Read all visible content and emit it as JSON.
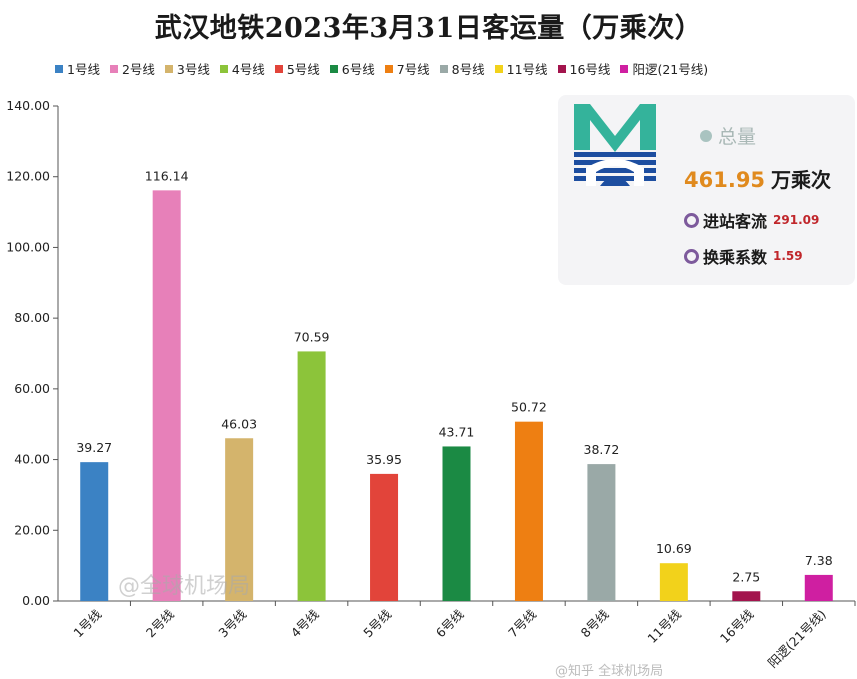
{
  "chart_data": {
    "type": "bar",
    "title": "武汉地铁2023年3月31日客运量（万乘次）",
    "categories": [
      "1号线",
      "2号线",
      "3号线",
      "4号线",
      "5号线",
      "6号线",
      "7号线",
      "8号线",
      "11号线",
      "16号线",
      "阳逻(21号线)"
    ],
    "legend_labels": [
      "1号线",
      "2号线",
      "3号线",
      "4号线",
      "5号线",
      "6号线",
      "7号线",
      "8号线",
      "11号线",
      "16号线",
      "阳逻(21号线)"
    ],
    "values": [
      39.27,
      116.14,
      46.03,
      70.59,
      35.95,
      43.71,
      50.72,
      38.72,
      10.69,
      2.75,
      7.38
    ],
    "value_labels": [
      "39.27",
      "116.14",
      "46.03",
      "70.59",
      "35.95",
      "43.71",
      "50.72",
      "38.72",
      "10.69",
      "2.75",
      "7.38"
    ],
    "colors": [
      "#3b82c4",
      "#e780b9",
      "#d4b46c",
      "#8cc43a",
      "#e2443a",
      "#1b8a44",
      "#ee7f12",
      "#9aa9a7",
      "#f2d21b",
      "#a3144d",
      "#cf1fa1"
    ],
    "ylim": [
      0,
      140
    ],
    "yticks": [
      "0.00",
      "20.00",
      "40.00",
      "60.00",
      "80.00",
      "100.00",
      "120.00",
      "140.00"
    ],
    "xlabel": "",
    "ylabel": "",
    "grid": false,
    "legend_position": "top"
  },
  "summary": {
    "total_label": "总量",
    "total_value": "461.95",
    "total_unit": "万乘次",
    "entry_label": "进站客流",
    "entry_value": "291.09",
    "transfer_label": "换乘系数",
    "transfer_value": "1.59"
  },
  "watermark": {
    "text": "@全球机场局",
    "footer_text": "@知乎 全球机场局"
  },
  "logo": {
    "colors": [
      "#34b39b",
      "#1d4ea0"
    ]
  }
}
